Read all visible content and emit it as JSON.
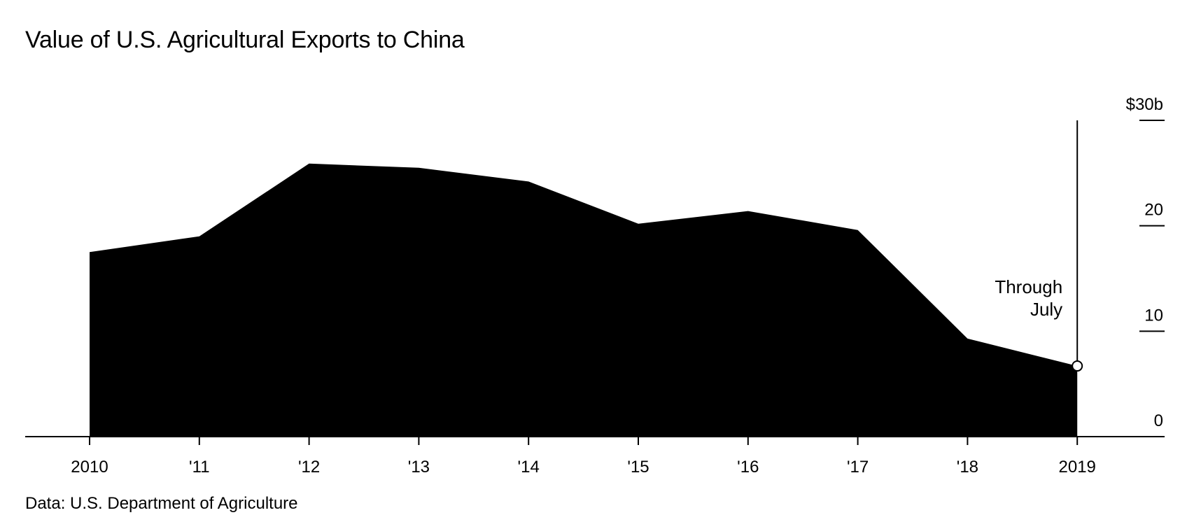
{
  "title": "Value of U.S. Agricultural Exports to China",
  "source": "Data: U.S. Department of Agriculture",
  "chart_data": {
    "type": "area",
    "title": "Value of U.S. Agricultural Exports to China",
    "x": [
      "2010",
      "'11",
      "'12",
      "'13",
      "'14",
      "'15",
      "'16",
      "'17",
      "'18",
      "2019"
    ],
    "values": [
      17.5,
      19.0,
      25.9,
      25.5,
      24.2,
      20.2,
      21.4,
      19.6,
      9.3,
      6.7
    ],
    "xlabel": "",
    "ylabel": "",
    "ylim": [
      0,
      30
    ],
    "yticks": [
      0,
      10,
      20,
      30
    ],
    "ytick_labels": [
      "0",
      "10",
      "20",
      "$30b"
    ],
    "y_axis_position": "right",
    "grid": false,
    "fill_color": "#000000",
    "annotation": {
      "text": [
        "Through",
        "July"
      ],
      "x": "2019"
    }
  }
}
